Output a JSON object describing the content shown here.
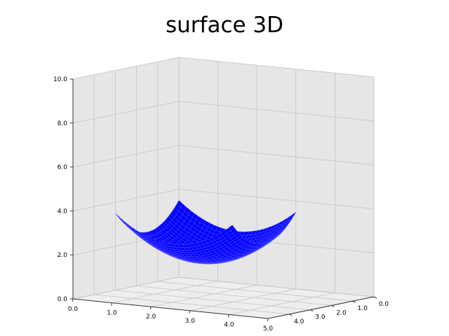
{
  "chart_data": {
    "type": "surface",
    "title": "surface 3D",
    "xlabel": "",
    "ylabel": "",
    "zlabel": "",
    "xlim": [
      0,
      5
    ],
    "ylim": [
      0,
      5
    ],
    "zlim": [
      0,
      10
    ],
    "x_ticks": [
      "0.0",
      "1.0",
      "2.0",
      "3.0",
      "4.0",
      "5.0"
    ],
    "y_ticks": [
      "0.0",
      "1.0",
      "2.0",
      "3.0",
      "4.0"
    ],
    "z_ticks": [
      "0.0",
      "2.0",
      "4.0",
      "6.0",
      "8.0",
      "10.0"
    ],
    "grid": true,
    "surface_color": "#0000ff",
    "pane_color": "#e6e6e6",
    "surface_x_range": [
      0,
      3
    ],
    "surface_y_range": [
      0,
      3
    ],
    "surface_center": [
      1.5,
      1.5
    ],
    "surface_min_z": 1.2,
    "surface_max_z": 3.5
  }
}
